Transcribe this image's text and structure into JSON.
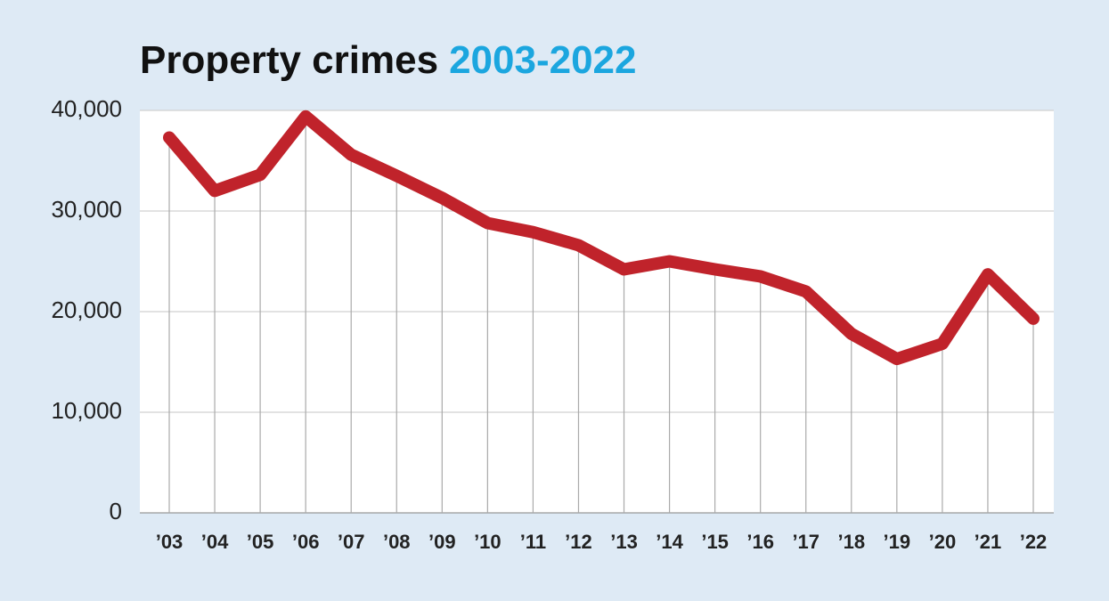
{
  "chart_data": {
    "type": "line",
    "title": "Property crimes",
    "subtitle": "2003-2022",
    "categories": [
      "’03",
      "’04",
      "’05",
      "’06",
      "’07",
      "’08",
      "’09",
      "’10",
      "’11",
      "’12",
      "’13",
      "’14",
      "’15",
      "’16",
      "’17",
      "’18",
      "’19",
      "’20",
      "’21",
      "’22"
    ],
    "values": [
      37300,
      32000,
      33600,
      39400,
      35600,
      33500,
      31300,
      28800,
      27900,
      26600,
      24200,
      25000,
      24200,
      23500,
      22000,
      17800,
      15300,
      16800,
      23700,
      19300
    ],
    "color": "#c0232b",
    "ylim": [
      0,
      40000
    ],
    "yticks": [
      0,
      {
        "value": 10000,
        "label": "10,000"
      },
      {
        "value": 20000,
        "label": "20,000"
      },
      {
        "value": 30000,
        "label": "30,000"
      },
      {
        "value": 40000,
        "label": "40,000"
      }
    ],
    "grid": true
  }
}
